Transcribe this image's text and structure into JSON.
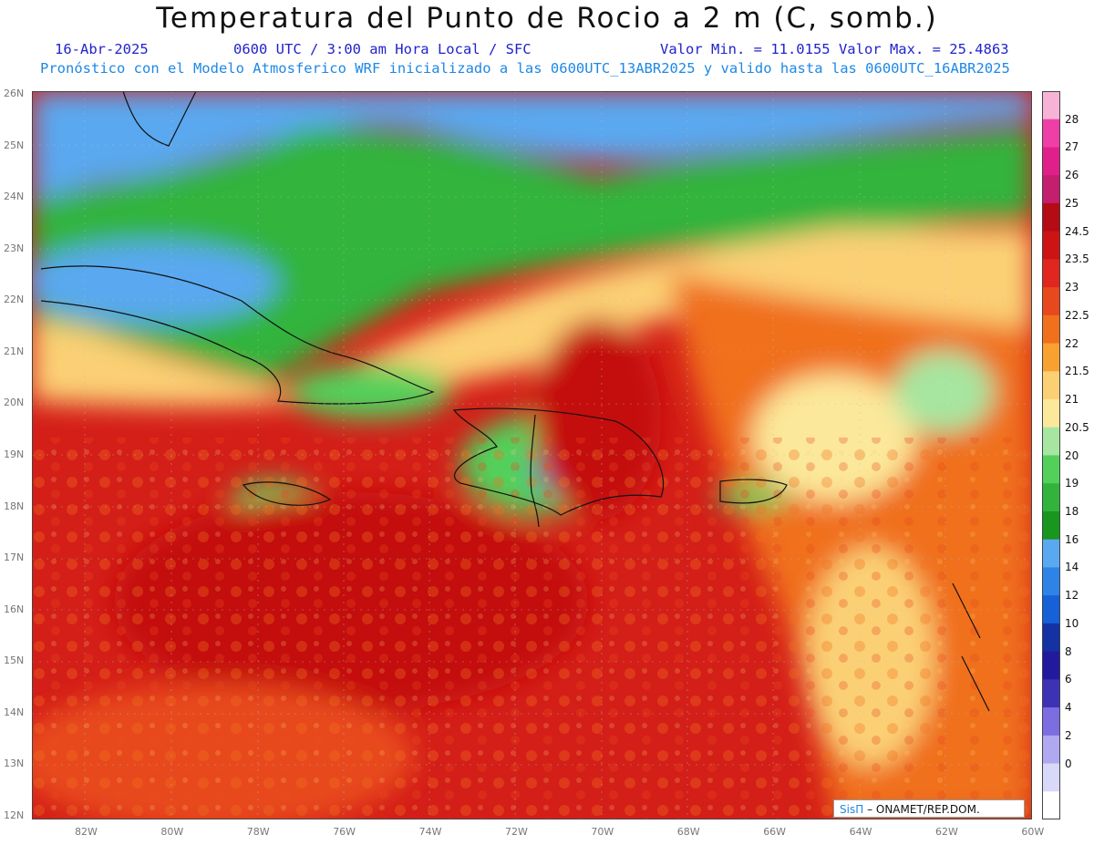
{
  "header": {
    "title": "Temperatura del Punto de Rocio a 2 m (C, somb.)",
    "date": "16-Abr-2025",
    "time": "0600 UTC / 3:00 am Hora Local / SFC",
    "minmax": "Valor Min. = 11.0155  Valor Max. = 25.4863",
    "model_info": "Pronóstico con el Modelo Atmosferico WRF inicializado a las 0600UTC_13ABR2025 y valido hasta las  0600UTC_16ABR2025"
  },
  "axes": {
    "latitude_labels": [
      "26N",
      "25N",
      "24N",
      "23N",
      "22N",
      "21N",
      "20N",
      "19N",
      "18N",
      "17N",
      "16N",
      "15N",
      "14N",
      "13N",
      "12N"
    ],
    "longitude_labels": [
      "82W",
      "80W",
      "78W",
      "76W",
      "74W",
      "72W",
      "70W",
      "68W",
      "66W",
      "64W",
      "62W",
      "60W"
    ]
  },
  "colorbar": {
    "labels": [
      "28",
      "27",
      "26",
      "25",
      "24.5",
      "23.5",
      "23",
      "22.5",
      "22",
      "21.5",
      "21",
      "20.5",
      "20",
      "19",
      "18",
      "16",
      "14",
      "12",
      "10",
      "8",
      "6",
      "4",
      "2",
      "0"
    ],
    "colors": [
      "#f7b3d6",
      "#ee3fa8",
      "#e0208a",
      "#c41e6e",
      "#b40b14",
      "#cc1414",
      "#e0261e",
      "#e8481e",
      "#f0701e",
      "#f8a030",
      "#fbd074",
      "#fce89a",
      "#a6e6a0",
      "#52d05a",
      "#32b43c",
      "#18961e",
      "#5aa8f0",
      "#2e84e4",
      "#1660d8",
      "#1432a4",
      "#221a9c",
      "#3e32b4",
      "#7c6ee0",
      "#b0a8f0",
      "#d8d8f8",
      "#ffffff"
    ]
  },
  "brand": {
    "sis": "SisΠ",
    "rest": "– ONAMET/REP.DOM."
  }
}
